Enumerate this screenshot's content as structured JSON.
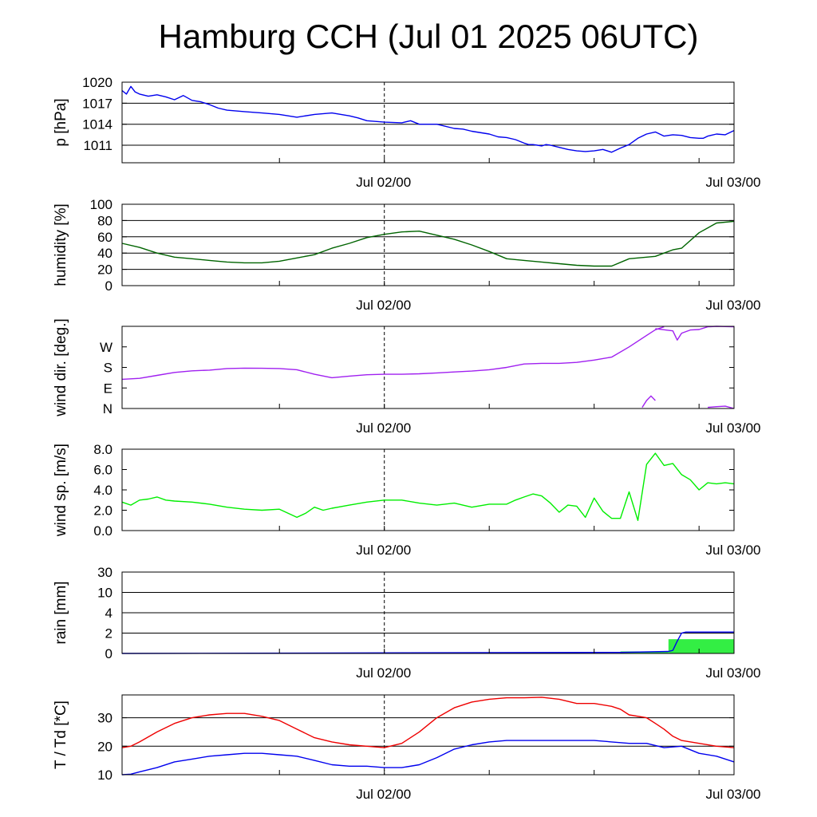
{
  "title": "Hamburg CCH (Jul 01 2025 06UTC)",
  "chart_data": [
    {
      "type": "line",
      "ylabel": "p [hPa]",
      "ylim": [
        1008.5,
        1020
      ],
      "yticks": [
        1011,
        1014,
        1017,
        1020
      ],
      "ytick_labels": [
        "1011",
        "1014",
        "1017",
        "1020"
      ],
      "grid": true,
      "x_tick_labels": [
        "Jul 02/00",
        "Jul 03/00"
      ],
      "series": [
        {
          "color": "#0000ee",
          "x": [
            0,
            0.5,
            1,
            1.5,
            2,
            3,
            4,
            5,
            6,
            7,
            8,
            9,
            10,
            11,
            12,
            14,
            16,
            18,
            20,
            22,
            24,
            26,
            27,
            28,
            30,
            32,
            33,
            34,
            36,
            38,
            39,
            40,
            42,
            43,
            44,
            45,
            46,
            46.5,
            47,
            47.5,
            48,
            48.5,
            49,
            50,
            51,
            52,
            53,
            54,
            55,
            56,
            57,
            58,
            59,
            60,
            61,
            62,
            63,
            64,
            65,
            66,
            66.5,
            67,
            68,
            69,
            70
          ],
          "values": [
            1018.8,
            1018.3,
            1019.4,
            1018.6,
            1018.3,
            1018.0,
            1018.2,
            1017.9,
            1017.5,
            1018.1,
            1017.4,
            1017.2,
            1016.8,
            1016.3,
            1016.0,
            1015.8,
            1015.6,
            1015.4,
            1015.0,
            1015.4,
            1015.6,
            1015.2,
            1014.9,
            1014.5,
            1014.3,
            1014.2,
            1014.5,
            1014.0,
            1014.0,
            1013.4,
            1013.3,
            1013.0,
            1012.6,
            1012.2,
            1012.1,
            1011.8,
            1011.3,
            1011.1,
            1011.1,
            1011.0,
            1010.9,
            1011.1,
            1011.0,
            1010.7,
            1010.4,
            1010.2,
            1010.1,
            1010.2,
            1010.4,
            1010.0,
            1010.6,
            1011.1,
            1012.0,
            1012.6,
            1012.9,
            1012.3,
            1012.5,
            1012.4,
            1012.1,
            1012.0,
            1012.0,
            1012.3,
            1012.6,
            1012.5,
            1013.1
          ]
        }
      ]
    },
    {
      "type": "line",
      "ylabel": "humidity [%]",
      "ylim": [
        0,
        100
      ],
      "yticks": [
        0,
        20,
        40,
        60,
        80,
        100
      ],
      "ytick_labels": [
        "0",
        "20",
        "40",
        "60",
        "80",
        "100"
      ],
      "grid": true,
      "x_tick_labels": [
        "Jul 02/00",
        "Jul 03/00"
      ],
      "series": [
        {
          "color": "#006400",
          "x": [
            0,
            2,
            4,
            6,
            8,
            10,
            12,
            14,
            16,
            18,
            20,
            22,
            24,
            26,
            28,
            30,
            32,
            34,
            36,
            38,
            40,
            42,
            44,
            46,
            48,
            50,
            52,
            54,
            56,
            58,
            60,
            61,
            62,
            63,
            64,
            66,
            68,
            70
          ],
          "values": [
            52,
            47,
            40,
            35,
            33,
            31,
            29,
            28,
            28,
            30,
            34,
            38,
            46,
            52,
            59,
            63,
            66,
            67,
            62,
            57,
            50,
            42,
            33,
            31,
            29,
            27,
            25,
            24,
            24,
            33,
            35,
            36,
            40,
            44,
            46,
            65,
            77,
            79
          ]
        }
      ]
    },
    {
      "type": "line",
      "ylabel": "wind dir. [deg.]",
      "ylim": [
        0,
        360
      ],
      "yticks": [
        0,
        90,
        180,
        270
      ],
      "ytick_labels": [
        "N",
        "E",
        "S",
        "W"
      ],
      "grid": false,
      "x_tick_labels": [
        "Jul 02/00",
        "Jul 03/00"
      ],
      "series": [
        {
          "color": "#a020f0",
          "x": [
            0,
            2,
            4,
            6,
            8,
            10,
            12,
            14,
            16,
            18,
            20,
            22,
            24,
            26,
            28,
            30,
            32,
            34,
            36,
            38,
            40,
            42,
            44,
            46,
            48,
            50,
            52,
            54,
            56,
            58,
            60,
            61,
            62
          ],
          "values": [
            128,
            132,
            145,
            158,
            165,
            168,
            175,
            177,
            176,
            175,
            170,
            150,
            135,
            142,
            148,
            150,
            150,
            152,
            156,
            160,
            164,
            170,
            180,
            195,
            198,
            198,
            202,
            212,
            225,
            270,
            320,
            345,
            358
          ]
        },
        {
          "color": "#a020f0",
          "x": [
            61,
            62,
            63,
            63.5,
            64,
            65,
            66,
            67,
            68,
            70
          ],
          "values": [
            350,
            345,
            340,
            300,
            330,
            344,
            346,
            358,
            360,
            358
          ]
        },
        {
          "color": "#a020f0",
          "x": [
            59.5,
            60,
            60.5,
            61
          ],
          "values": [
            5,
            35,
            55,
            35
          ]
        },
        {
          "color": "#a020f0",
          "x": [
            67,
            68,
            69,
            70
          ],
          "values": [
            5,
            8,
            10,
            0
          ]
        }
      ]
    },
    {
      "type": "line",
      "ylabel": "wind sp. [m/s]",
      "ylim": [
        0,
        8
      ],
      "yticks": [
        0,
        2,
        4,
        6,
        8
      ],
      "ytick_labels": [
        "0.0",
        "2.0",
        "4.0",
        "6.0",
        "8.0"
      ],
      "grid": false,
      "x_tick_labels": [
        "Jul 02/00",
        "Jul 03/00"
      ],
      "series": [
        {
          "color": "#00ee00",
          "x": [
            0,
            1,
            2,
            3,
            4,
            5,
            6,
            8,
            10,
            12,
            14,
            16,
            18,
            20,
            21,
            22,
            23,
            24,
            26,
            28,
            30,
            32,
            34,
            36,
            38,
            40,
            42,
            44,
            45,
            46,
            47,
            48,
            49,
            50,
            51,
            52,
            53,
            54,
            55,
            56,
            57,
            58,
            59,
            60,
            61,
            62,
            63,
            64,
            65,
            66,
            67,
            68,
            69,
            70
          ],
          "values": [
            2.8,
            2.5,
            3.0,
            3.1,
            3.3,
            3.0,
            2.9,
            2.8,
            2.6,
            2.3,
            2.1,
            2.0,
            2.1,
            1.3,
            1.7,
            2.3,
            2.0,
            2.2,
            2.5,
            2.8,
            3.0,
            3.0,
            2.7,
            2.5,
            2.7,
            2.3,
            2.6,
            2.6,
            3.0,
            3.3,
            3.6,
            3.4,
            2.7,
            1.8,
            2.5,
            2.4,
            1.3,
            3.2,
            1.9,
            1.2,
            1.2,
            3.8,
            1.0,
            6.5,
            7.6,
            6.4,
            6.6,
            5.5,
            5.0,
            4.0,
            4.7,
            4.6,
            4.7,
            4.6
          ]
        }
      ]
    },
    {
      "type": "bar",
      "ylabel": "rain [mm]",
      "ylim": [
        0,
        30
      ],
      "yticks": [
        0,
        2,
        4,
        10,
        30
      ],
      "ytick_labels": [
        "0",
        "2",
        "4",
        "10",
        "30"
      ],
      "grid": true,
      "x_tick_labels": [
        "Jul 02/00",
        "Jul 03/00"
      ],
      "bars": [
        {
          "x0": 57,
          "x1": 62.5,
          "value": 0.2
        },
        {
          "x0": 62.5,
          "x1": 70,
          "value": 1.4
        }
      ],
      "series": [
        {
          "color": "#0000ee",
          "x": [
            0,
            57,
            62.5,
            63,
            63.5,
            64,
            64.5,
            70
          ],
          "values": [
            0,
            0.1,
            0.2,
            0.3,
            1.2,
            2.0,
            2.1,
            2.1
          ]
        }
      ]
    },
    {
      "type": "line",
      "ylabel": "T / Td [*C]",
      "ylim": [
        10,
        38
      ],
      "yticks": [
        10,
        20,
        30
      ],
      "ytick_labels": [
        "10",
        "20",
        "30"
      ],
      "grid": true,
      "x_tick_labels": [
        "Jul 02/00",
        "Jul 03/00"
      ],
      "series": [
        {
          "color": "#ee0000",
          "x": [
            0,
            1,
            2,
            4,
            6,
            8,
            10,
            12,
            14,
            16,
            18,
            20,
            22,
            24,
            26,
            28,
            30,
            32,
            34,
            36,
            38,
            40,
            42,
            44,
            46,
            48,
            50,
            52,
            54,
            56,
            57,
            58,
            60,
            61,
            62,
            63,
            64,
            66,
            68,
            70
          ],
          "values": [
            19.5,
            20,
            21.5,
            25,
            28,
            30,
            31,
            31.5,
            31.5,
            30.5,
            29,
            26,
            23,
            21.5,
            20.5,
            20,
            19.5,
            21,
            25,
            30,
            33.5,
            35.5,
            36.5,
            37,
            37,
            37.2,
            36.5,
            35,
            35,
            34,
            33,
            31,
            30,
            28,
            26,
            23.5,
            22,
            21,
            20,
            19.5
          ]
        },
        {
          "color": "#0000ee",
          "x": [
            0,
            1,
            2,
            4,
            6,
            8,
            10,
            12,
            14,
            16,
            18,
            20,
            22,
            24,
            26,
            28,
            30,
            32,
            34,
            36,
            38,
            40,
            42,
            44,
            46,
            48,
            50,
            52,
            54,
            56,
            58,
            60,
            62,
            64,
            66,
            68,
            70
          ],
          "values": [
            10,
            10.2,
            11,
            12.5,
            14.5,
            15.5,
            16.5,
            17,
            17.5,
            17.5,
            17,
            16.5,
            15,
            13.5,
            13,
            13,
            12.5,
            12.5,
            13.5,
            16,
            19,
            20.5,
            21.5,
            22,
            22,
            22,
            22,
            22,
            22,
            21.5,
            21,
            21,
            19.5,
            20,
            17.5,
            16.5,
            14.5
          ]
        }
      ]
    }
  ]
}
